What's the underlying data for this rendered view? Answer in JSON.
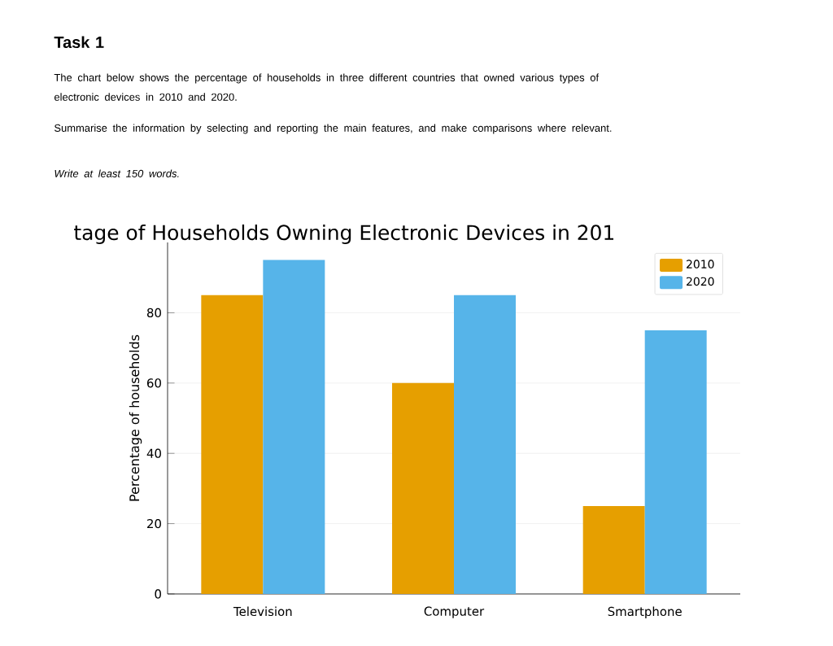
{
  "chart_data": {
    "type": "bar",
    "title": "tage of Households Owning Electronic Devices in 201",
    "annotations": [
      "Task 1",
      "The chart below shows the percentage of households in three different countries that owned various types of electronic devices in 2010 and 2020.",
      "Summarise the information by selecting and reporting the main features, and make comparisons where relevant.",
      "Write at least 150 words."
    ],
    "categories": [
      "Television",
      "Computer",
      "Smartphone"
    ],
    "series": [
      {
        "name": "2010",
        "color": "#e69f00",
        "values": [
          85,
          60,
          25
        ]
      },
      {
        "name": "2020",
        "color": "#56b4e9",
        "values": [
          95,
          85,
          75
        ]
      }
    ],
    "ylabel": "Percentage of households",
    "ylim": [
      0,
      100
    ],
    "yticks": [
      0,
      20,
      40,
      60,
      80
    ],
    "grid": "y",
    "legend": "top right"
  }
}
